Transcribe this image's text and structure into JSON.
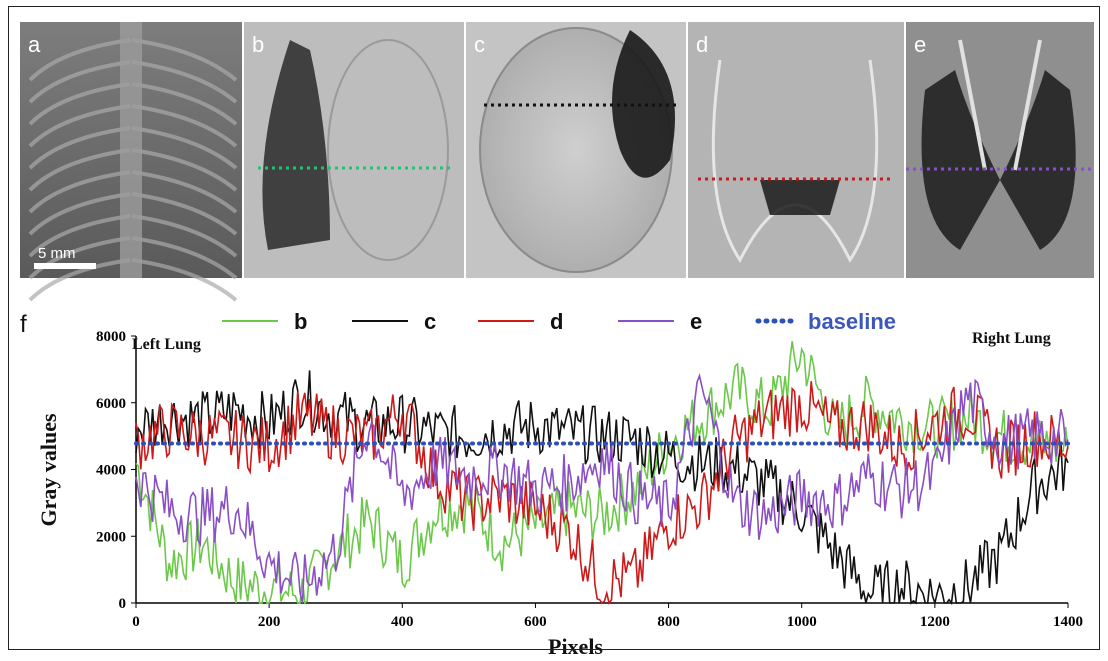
{
  "panels": [
    {
      "id": "a",
      "label": "a",
      "scale_bar": "5 mm",
      "line_color": null
    },
    {
      "id": "b",
      "label": "b",
      "scale_bar": null,
      "line_color": "#22c272"
    },
    {
      "id": "c",
      "label": "c",
      "scale_bar": null,
      "line_color": "#111111"
    },
    {
      "id": "d",
      "label": "d",
      "scale_bar": null,
      "line_color": "#cc1a1a"
    },
    {
      "id": "e",
      "label": "e",
      "scale_bar": null,
      "line_color": "#8a4fc4"
    }
  ],
  "chart_data": {
    "type": "line",
    "panel_label": "f",
    "xlabel": "Pixels",
    "ylabel": "Gray values",
    "xlim": [
      0,
      1400
    ],
    "ylim": [
      0,
      8000
    ],
    "xticks": [
      0,
      200,
      400,
      600,
      800,
      1000,
      1200,
      1400
    ],
    "yticks": [
      0,
      2000,
      4000,
      6000,
      8000
    ],
    "annotations": {
      "left": "Left Lung",
      "right": "Right Lung"
    },
    "legend_position": "top",
    "series": [
      {
        "name": "b",
        "color": "#6cc84a",
        "x": [
          0,
          50,
          100,
          150,
          200,
          250,
          300,
          350,
          400,
          450,
          500,
          550,
          600,
          650,
          700,
          750,
          800,
          850,
          900,
          950,
          1000,
          1050,
          1100,
          1150,
          1200,
          1250,
          1300,
          1350,
          1400
        ],
        "values": [
          4200,
          1200,
          1800,
          600,
          400,
          300,
          1500,
          2500,
          1200,
          2800,
          3000,
          1800,
          2300,
          2800,
          2600,
          3400,
          4800,
          5600,
          6400,
          5800,
          7500,
          5200,
          6000,
          5500,
          5200,
          5600,
          5000,
          4800,
          4600
        ]
      },
      {
        "name": "c",
        "color": "#111111",
        "x": [
          0,
          50,
          100,
          150,
          200,
          250,
          300,
          350,
          400,
          450,
          500,
          550,
          600,
          650,
          700,
          750,
          800,
          850,
          900,
          950,
          1000,
          1050,
          1100,
          1150,
          1200,
          1250,
          1300,
          1350,
          1400
        ],
        "values": [
          5200,
          5600,
          5500,
          5800,
          5400,
          6200,
          5600,
          5300,
          5400,
          5100,
          5000,
          5200,
          5300,
          5100,
          5000,
          4900,
          4400,
          4200,
          4000,
          3500,
          2800,
          1500,
          300,
          500,
          200,
          500,
          1500,
          3500,
          4200
        ]
      },
      {
        "name": "d",
        "color": "#cc1a1a",
        "x": [
          0,
          50,
          100,
          150,
          200,
          250,
          300,
          350,
          400,
          450,
          500,
          550,
          600,
          650,
          700,
          750,
          800,
          850,
          900,
          950,
          1000,
          1050,
          1100,
          1150,
          1200,
          1250,
          1300,
          1350,
          1400
        ],
        "values": [
          4800,
          5200,
          5000,
          4900,
          4700,
          5600,
          5100,
          4900,
          5800,
          3800,
          3000,
          3200,
          2800,
          2200,
          600,
          800,
          2400,
          3000,
          4800,
          5600,
          6000,
          5200,
          5400,
          4600,
          5400,
          5800,
          4500,
          5000,
          4700
        ]
      },
      {
        "name": "e",
        "color": "#8a4fc4",
        "x": [
          0,
          50,
          100,
          150,
          200,
          250,
          300,
          350,
          400,
          450,
          500,
          550,
          600,
          650,
          700,
          750,
          800,
          850,
          900,
          950,
          1000,
          1050,
          1100,
          1150,
          1200,
          1250,
          1300,
          1350,
          1400
        ],
        "values": [
          3800,
          2800,
          2600,
          2900,
          1200,
          500,
          1600,
          5500,
          3200,
          4200,
          3800,
          4000,
          3400,
          3600,
          4400,
          3200,
          2800,
          6400,
          3000,
          2600,
          3200,
          3000,
          3800,
          3400,
          3800,
          6200,
          4800,
          5000,
          4900
        ]
      },
      {
        "name": "baseline",
        "color": "#2e4fb3",
        "x": [
          0,
          1400
        ],
        "values": [
          4780,
          4780
        ]
      }
    ]
  }
}
